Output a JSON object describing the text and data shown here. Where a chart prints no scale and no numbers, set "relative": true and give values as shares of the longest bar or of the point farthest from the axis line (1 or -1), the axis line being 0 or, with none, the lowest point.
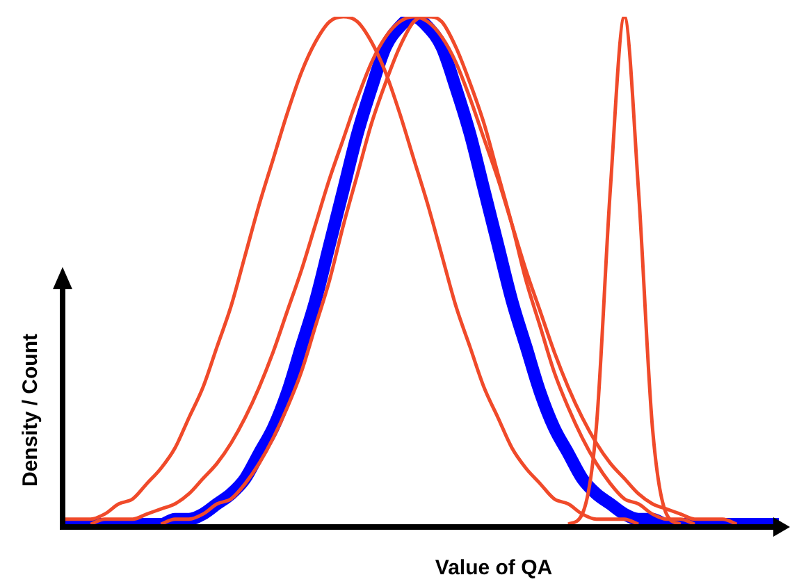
{
  "chart_data": {
    "type": "line",
    "relative": true,
    "xlabel": "Value of QA",
    "ylabel": "Density / Count",
    "grid": false,
    "legend": false,
    "marker": "none",
    "line_style": "solid",
    "categories": [
      null,
      null,
      null,
      null,
      null,
      null,
      null,
      null,
      null,
      null,
      null,
      null,
      null,
      null,
      null,
      null,
      null,
      null,
      null,
      null,
      null,
      null,
      null,
      null,
      null,
      null,
      null,
      null,
      null,
      null,
      null,
      null,
      null,
      null,
      null,
      null,
      null,
      null,
      null,
      null,
      null,
      null,
      null,
      null,
      null,
      null,
      null,
      null,
      null,
      null,
      null,
      null
    ],
    "series": [
      {
        "color": "#0000ff",
        "values": [
          0,
          0,
          0,
          0,
          0,
          0,
          0,
          0,
          0.01,
          0.01,
          0.02,
          0.04,
          0.06,
          0.09,
          0.14,
          0.19,
          0.26,
          0.35,
          0.44,
          0.55,
          0.66,
          0.77,
          0.86,
          0.94,
          0.98,
          1,
          0.98,
          0.94,
          0.86,
          0.77,
          0.66,
          0.55,
          0.44,
          0.35,
          0.26,
          0.19,
          0.14,
          0.09,
          0.06,
          0.04,
          0.02,
          0.01,
          0.01,
          0,
          0,
          0,
          0,
          0,
          0,
          0,
          0,
          0
        ]
      },
      {
        "color": "#f04a2a",
        "values": [
          0.01,
          0.01,
          0.01,
          0.02,
          0.04,
          0.05,
          0.08,
          0.11,
          0.15,
          0.21,
          0.27,
          0.35,
          0.43,
          0.53,
          0.63,
          0.72,
          0.81,
          0.89,
          0.95,
          0.99,
          1,
          0.99,
          0.95,
          0.89,
          0.81,
          0.72,
          0.63,
          0.53,
          0.43,
          0.35,
          0.27,
          0.21,
          0.15,
          0.11,
          0.08,
          0.05,
          0.04,
          0.02,
          0.01,
          0.01,
          0.01,
          0,
          null,
          null,
          null,
          null,
          null,
          null,
          null,
          null,
          null,
          null
        ]
      },
      {
        "color": "#f04a2a",
        "values": [
          null,
          null,
          0,
          0.01,
          0.01,
          0.01,
          0.02,
          0.03,
          0.04,
          0.06,
          0.09,
          0.12,
          0.16,
          0.21,
          0.27,
          0.34,
          0.42,
          0.5,
          0.59,
          0.68,
          0.76,
          0.84,
          0.91,
          0.96,
          0.99,
          1,
          0.99,
          0.96,
          0.91,
          0.84,
          0.76,
          0.68,
          0.59,
          0.5,
          0.42,
          0.34,
          0.27,
          0.21,
          0.16,
          0.12,
          0.09,
          0.06,
          0.04,
          0.03,
          0.02,
          0.01,
          0.01,
          0.01,
          0,
          null,
          null,
          null
        ]
      },
      {
        "color": "#f04a2a",
        "values": [
          null,
          null,
          null,
          null,
          null,
          null,
          null,
          0,
          0.01,
          0.01,
          0.02,
          0.04,
          0.05,
          0.08,
          0.12,
          0.17,
          0.23,
          0.3,
          0.39,
          0.48,
          0.59,
          0.69,
          0.79,
          0.87,
          0.94,
          0.99,
          1,
          0.99,
          0.94,
          0.87,
          0.79,
          0.69,
          0.59,
          0.48,
          0.39,
          0.3,
          0.23,
          0.17,
          0.12,
          0.08,
          0.05,
          0.04,
          0.02,
          0.01,
          0.01,
          0,
          null,
          null,
          null,
          null,
          null,
          null
        ]
      },
      {
        "color": "#f04a2a",
        "values": [
          null,
          null,
          null,
          null,
          null,
          null,
          null,
          null,
          null,
          null,
          null,
          null,
          null,
          null,
          null,
          null,
          null,
          null,
          null,
          null,
          null,
          null,
          null,
          null,
          null,
          null,
          null,
          null,
          null,
          null,
          null,
          null,
          null,
          null,
          null,
          null,
          0,
          0.02,
          0.19,
          0.66,
          1,
          0.66,
          0.19,
          0.02,
          0,
          null,
          null,
          null,
          null,
          null,
          null,
          null
        ]
      }
    ]
  }
}
